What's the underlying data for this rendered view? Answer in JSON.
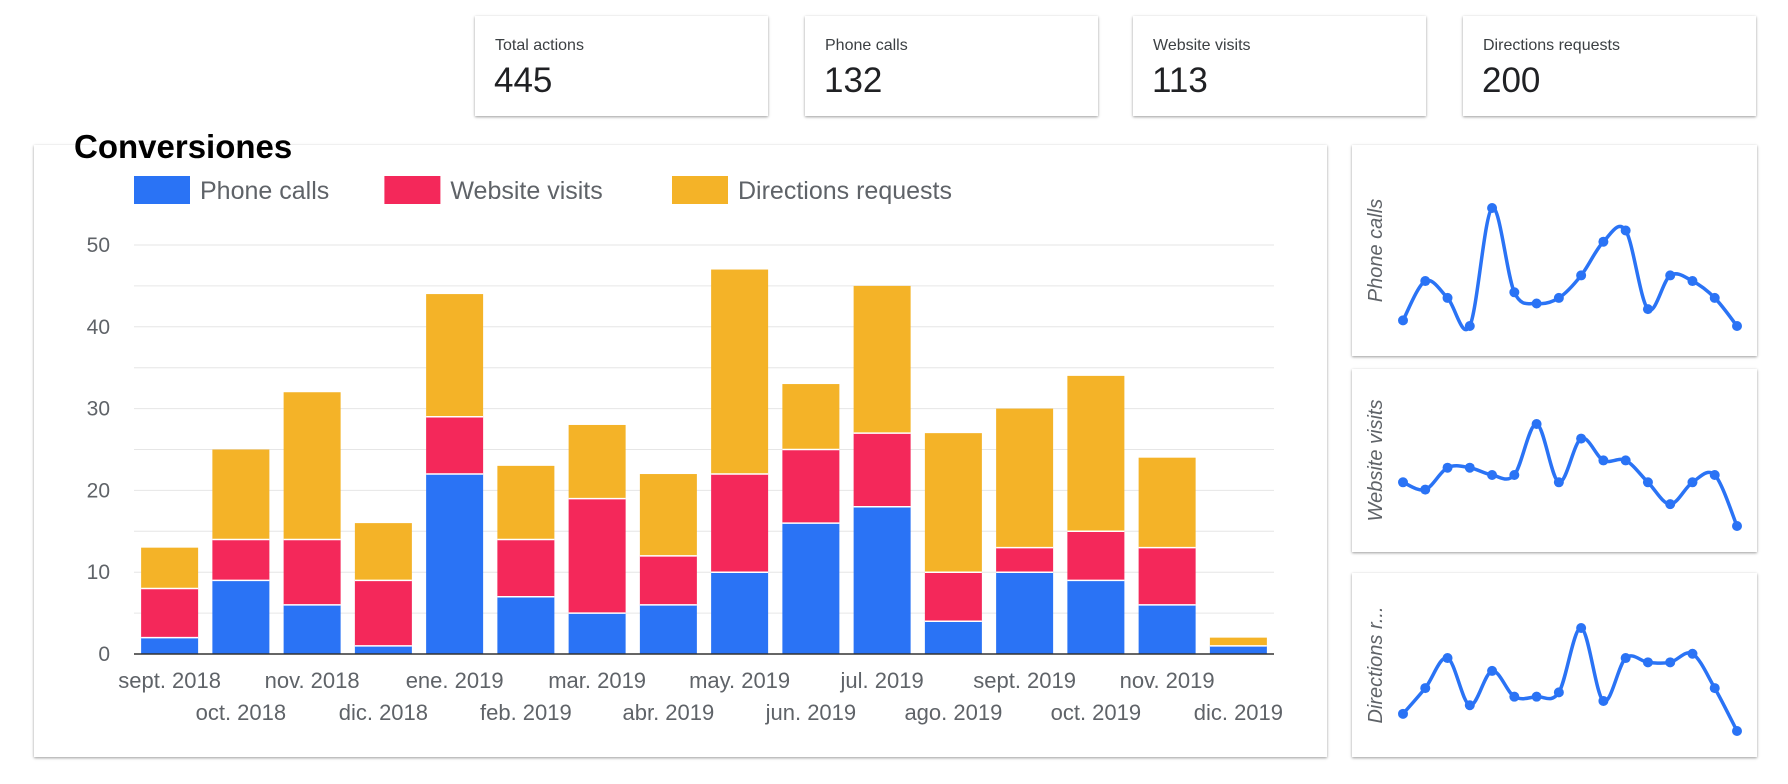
{
  "kpis": [
    {
      "label": "Total actions",
      "value": "445"
    },
    {
      "label": "Phone calls",
      "value": "132"
    },
    {
      "label": "Website visits",
      "value": "113"
    },
    {
      "label": "Directions requests",
      "value": "200"
    }
  ],
  "chart_data": [
    {
      "type": "bar",
      "stacked": true,
      "title": "Conversiones",
      "xlabel": "",
      "ylabel": "",
      "ylim": [
        0,
        50
      ],
      "yticks": [
        0,
        10,
        20,
        30,
        40,
        50
      ],
      "grid": true,
      "legend_position": "top",
      "categories": [
        "sept. 2018",
        "oct. 2018",
        "nov. 2018",
        "dic. 2018",
        "ene. 2019",
        "feb. 2019",
        "mar. 2019",
        "abr. 2019",
        "may. 2019",
        "jun. 2019",
        "jul. 2019",
        "ago. 2019",
        "sept. 2019",
        "oct. 2019",
        "nov. 2019",
        "dic. 2019"
      ],
      "series": [
        {
          "name": "Phone calls",
          "color": "#2a73f5",
          "values": [
            2,
            9,
            6,
            1,
            22,
            7,
            5,
            6,
            10,
            16,
            18,
            4,
            10,
            9,
            6,
            1
          ]
        },
        {
          "name": "Website visits",
          "color": "#f4285a",
          "values": [
            6,
            5,
            8,
            8,
            7,
            7,
            14,
            6,
            12,
            9,
            9,
            6,
            3,
            6,
            7,
            0
          ]
        },
        {
          "name": "Directions requests",
          "color": "#f4b328",
          "values": [
            5,
            11,
            18,
            7,
            15,
            9,
            9,
            10,
            25,
            8,
            18,
            17,
            17,
            19,
            11,
            1
          ]
        }
      ]
    },
    {
      "type": "line",
      "ylabel": "Phone calls",
      "color": "#2a73f5",
      "x": [
        "sept. 2018",
        "oct. 2018",
        "nov. 2018",
        "dic. 2018",
        "ene. 2019",
        "feb. 2019",
        "mar. 2019",
        "abr. 2019",
        "may. 2019",
        "jun. 2019",
        "jul. 2019",
        "ago. 2019",
        "sept. 2019",
        "oct. 2019",
        "nov. 2019",
        "dic. 2019"
      ],
      "values": [
        2,
        9,
        6,
        1,
        22,
        7,
        5,
        6,
        10,
        16,
        18,
        4,
        10,
        9,
        6,
        1
      ]
    },
    {
      "type": "line",
      "ylabel": "Website visits",
      "color": "#2a73f5",
      "x": [
        "sept. 2018",
        "oct. 2018",
        "nov. 2018",
        "dic. 2018",
        "ene. 2019",
        "feb. 2019",
        "mar. 2019",
        "abr. 2019",
        "may. 2019",
        "jun. 2019",
        "jul. 2019",
        "ago. 2019",
        "sept. 2019",
        "oct. 2019",
        "nov. 2019",
        "dic. 2019"
      ],
      "values": [
        6,
        5,
        8,
        8,
        7,
        7,
        14,
        6,
        12,
        9,
        9,
        6,
        3,
        6,
        7,
        0
      ]
    },
    {
      "type": "line",
      "ylabel": "Directions r...",
      "color": "#2a73f5",
      "x": [
        "sept. 2018",
        "oct. 2018",
        "nov. 2018",
        "dic. 2018",
        "ene. 2019",
        "feb. 2019",
        "mar. 2019",
        "abr. 2019",
        "may. 2019",
        "jun. 2019",
        "jul. 2019",
        "ago. 2019",
        "sept. 2019",
        "oct. 2019",
        "nov. 2019",
        "dic. 2019"
      ],
      "values": [
        5,
        11,
        18,
        7,
        15,
        9,
        9,
        10,
        25,
        8,
        18,
        17,
        17,
        19,
        11,
        1
      ]
    }
  ]
}
